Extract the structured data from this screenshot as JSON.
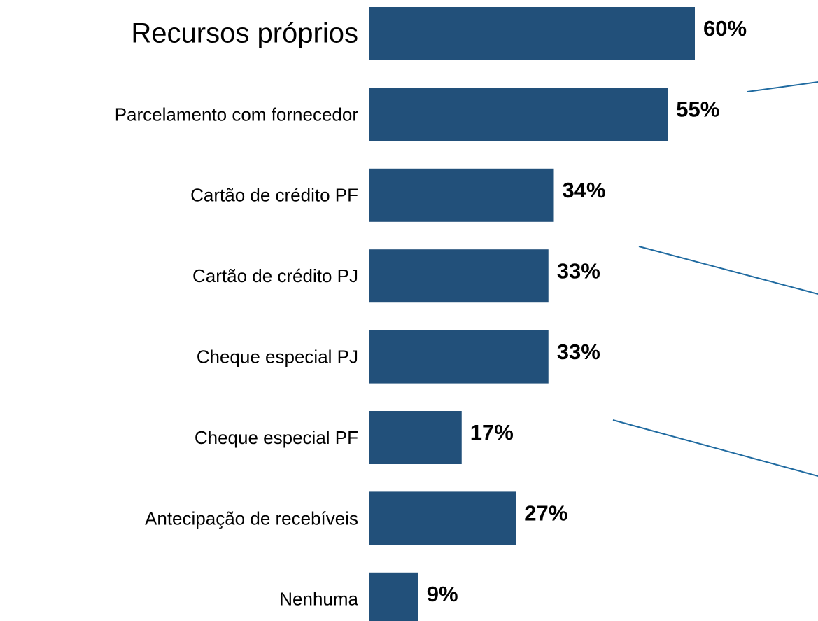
{
  "chart_data": {
    "type": "bar",
    "orientation": "horizontal",
    "color": "#22507a",
    "categories": [
      "Recursos próprios",
      "Parcelamento com fornecedor",
      "Cartão de crédito PF",
      "Cartão de crédito PJ",
      "Cheque especial PJ",
      "Cheque especial PF",
      "Antecipação de recebíveis",
      "Nenhuma"
    ],
    "values": [
      60,
      55,
      34,
      33,
      33,
      17,
      27,
      9
    ],
    "value_labels": [
      "60%",
      "55%",
      "34%",
      "33%",
      "33%",
      "17%",
      "27%",
      "9%"
    ]
  }
}
